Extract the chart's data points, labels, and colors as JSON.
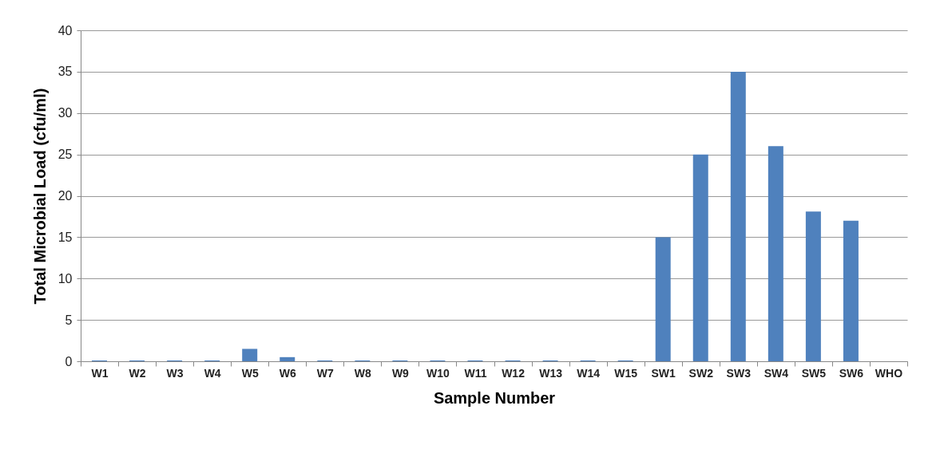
{
  "chart_data": {
    "type": "bar",
    "xlabel": "Sample Number",
    "ylabel": "Total Microbial Load (cfu/ml)",
    "categories": [
      "W1",
      "W2",
      "W3",
      "W4",
      "W5",
      "W6",
      "W7",
      "W8",
      "W9",
      "W10",
      "W11",
      "W12",
      "W13",
      "W14",
      "W15",
      "SW1",
      "SW2",
      "SW3",
      "SW4",
      "SW5",
      "SW6",
      "WHO"
    ],
    "values": [
      0.1,
      0.1,
      0.1,
      0.1,
      1.5,
      0.5,
      0.1,
      0.1,
      0.1,
      0.1,
      0.1,
      0.1,
      0.1,
      0.1,
      0.1,
      15,
      25,
      35,
      26,
      18.1,
      17,
      0
    ],
    "color": "#4f81bd",
    "ylim": [
      0,
      40
    ],
    "yticks": [
      0,
      5,
      10,
      15,
      20,
      25,
      30,
      35,
      40
    ],
    "grid": "y"
  }
}
